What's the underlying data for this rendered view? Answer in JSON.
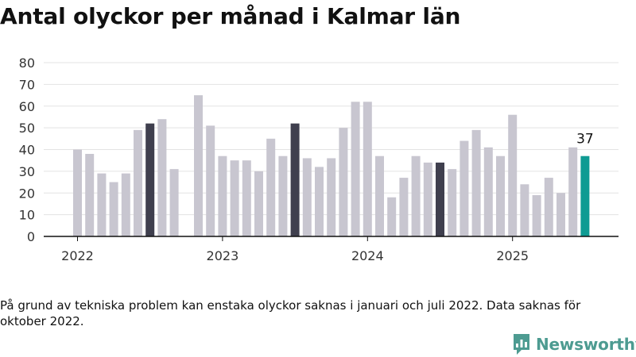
{
  "page": {
    "title": "Antal olyckor per månad i Kalmar län",
    "note": "På grund av tekniska problem kan enstaka olyckor saknas i januari och juli 2022. Data saknas för oktober 2022.",
    "brand": "Newsworthy"
  },
  "colors": {
    "bar": "#c8c6d0",
    "highlight": "#3f3f4e",
    "latest": "#0f9b93",
    "grid": "#e3e3e3",
    "axis": "#111111",
    "brand": "#4d9b91"
  },
  "chart_data": {
    "type": "bar",
    "title": "Antal olyckor per månad i Kalmar län",
    "xlabel": "",
    "ylabel": "",
    "ylim": [
      0,
      80
    ],
    "yticks": [
      0,
      10,
      20,
      30,
      40,
      50,
      60,
      70,
      80
    ],
    "xticks": [
      {
        "label": "2022",
        "at": "2022-01"
      },
      {
        "label": "2023",
        "at": "2023-01"
      },
      {
        "label": "2024",
        "at": "2024-01"
      },
      {
        "label": "2025",
        "at": "2025-01"
      }
    ],
    "grid": true,
    "legend": "none",
    "categories": [
      "2022-01",
      "2022-02",
      "2022-03",
      "2022-04",
      "2022-05",
      "2022-06",
      "2022-07",
      "2022-08",
      "2022-09",
      "2022-10",
      "2022-11",
      "2022-12",
      "2023-01",
      "2023-02",
      "2023-03",
      "2023-04",
      "2023-05",
      "2023-06",
      "2023-07",
      "2023-08",
      "2023-09",
      "2023-10",
      "2023-11",
      "2023-12",
      "2024-01",
      "2024-02",
      "2024-03",
      "2024-04",
      "2024-05",
      "2024-06",
      "2024-07",
      "2024-08",
      "2024-09",
      "2024-10",
      "2024-11",
      "2024-12",
      "2025-01",
      "2025-02",
      "2025-03",
      "2025-04",
      "2025-05",
      "2025-06",
      "2025-07"
    ],
    "values": [
      40,
      38,
      29,
      25,
      29,
      49,
      52,
      54,
      31,
      null,
      65,
      51,
      37,
      35,
      35,
      30,
      45,
      37,
      52,
      36,
      32,
      36,
      50,
      62,
      62,
      37,
      18,
      27,
      37,
      34,
      34,
      31,
      44,
      49,
      41,
      37,
      56,
      24,
      19,
      27,
      20,
      41,
      37
    ],
    "highlighted": [
      "2022-07",
      "2023-07",
      "2024-07"
    ],
    "latest": "2025-07",
    "data_labels": [
      {
        "category": "2025-07",
        "text": "37"
      }
    ]
  }
}
